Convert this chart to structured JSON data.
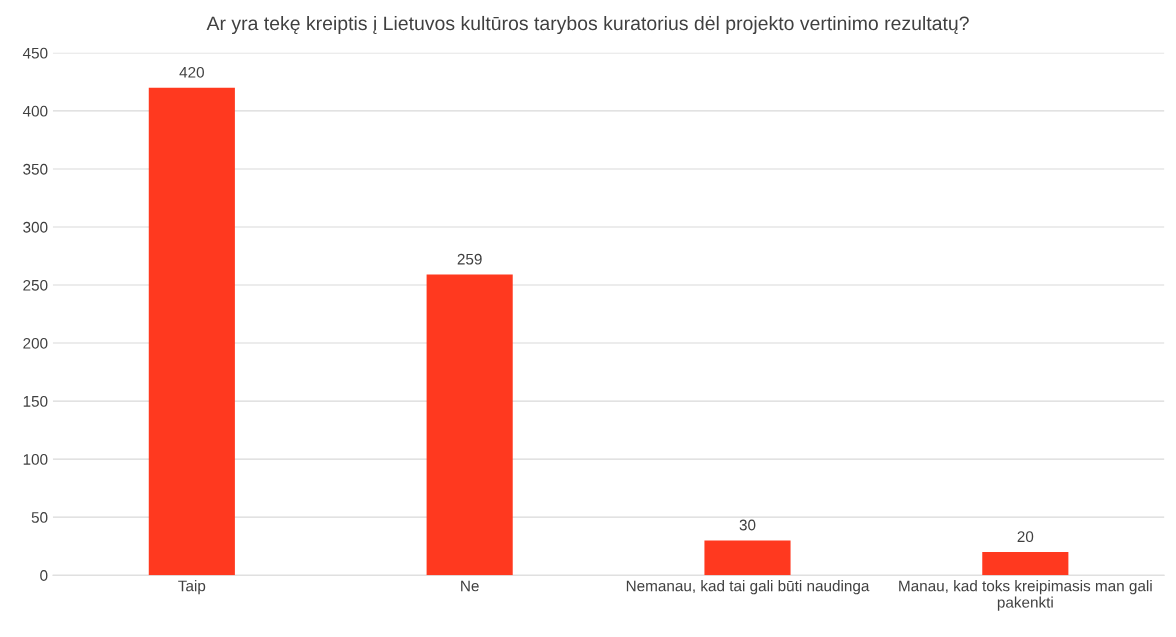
{
  "chart_data": {
    "type": "bar",
    "title": "Ar yra tekę kreiptis į Lietuvos kultūros tarybos kuratorius dėl projekto vertinimo rezultatų?",
    "categories": [
      "Taip",
      "Ne",
      "Nemanau, kad tai gali būti naudinga",
      "Manau, kad toks kreipimasis man gali pakenkti"
    ],
    "values": [
      420,
      259,
      30,
      20
    ],
    "color": "#ff391f",
    "ylim": [
      0,
      450
    ],
    "yticks": [
      0,
      50,
      100,
      150,
      200,
      250,
      300,
      350,
      400,
      450
    ],
    "grid": "y",
    "data_labels": true,
    "legend": false
  }
}
